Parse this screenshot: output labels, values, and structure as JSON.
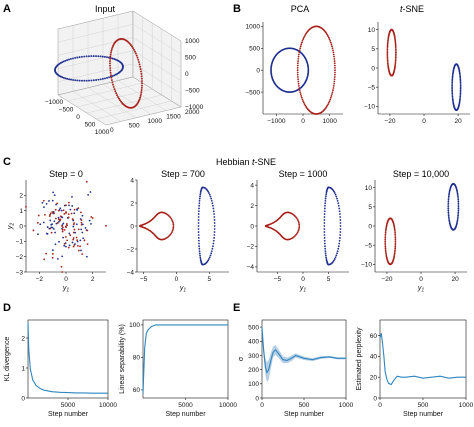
{
  "figure": {
    "panel_letters": [
      "A",
      "B",
      "C",
      "D",
      "E"
    ]
  },
  "colors": {
    "blue": "#1f2f8f",
    "red": "#a8201a",
    "line": "#2f86bf",
    "band": "#b7cfe6",
    "grid": "#cccccc"
  },
  "chart_data": [
    {
      "id": "A",
      "type": "scatter",
      "title": "Input",
      "z_ticks": [
        "1000",
        "500",
        "0",
        "−500",
        "−1000"
      ],
      "x_ticks": [
        "−1000",
        "−500",
        "0",
        "500",
        "1000"
      ],
      "y_ticks": [
        "0",
        "500",
        "1000",
        "1500",
        "2000"
      ],
      "series": [
        {
          "color": "blue",
          "shape": "circle",
          "radius": 1000,
          "center": [
            0,
            0,
            0
          ],
          "plane": "xy"
        },
        {
          "color": "red",
          "shape": "circle",
          "radius": 1000,
          "center": [
            1000,
            0,
            0
          ],
          "plane": "xz"
        }
      ]
    },
    {
      "id": "B1",
      "type": "scatter",
      "title": "PCA",
      "xlim": [
        -1500,
        1500
      ],
      "ylim": [
        -1000,
        1100
      ],
      "x_ticks": [
        -1000,
        0,
        1000
      ],
      "y_ticks": [
        -500,
        0,
        500,
        1000
      ],
      "x_tick_labels": [
        "−1000",
        "0",
        "1000"
      ],
      "y_tick_labels": [
        "−500",
        "0",
        "500",
        "1000"
      ],
      "series": [
        {
          "color": "blue",
          "center": [
            -500,
            0
          ],
          "radii": [
            700,
            500
          ]
        },
        {
          "color": "red",
          "center": [
            500,
            0
          ],
          "radii": [
            700,
            1000
          ]
        }
      ]
    },
    {
      "id": "B2",
      "type": "scatter",
      "title_prefix": "",
      "title_italic": "t",
      "title_suffix": "-SNE",
      "xlim": [
        -27,
        27
      ],
      "ylim": [
        -12,
        12
      ],
      "x_ticks": [
        -20,
        0,
        20
      ],
      "y_ticks": [
        -10,
        -5,
        0,
        5,
        10
      ],
      "x_tick_labels": [
        "−20",
        "0",
        "20"
      ],
      "y_tick_labels": [
        "−10",
        "−5",
        "0",
        "5",
        "10"
      ],
      "series": [
        {
          "color": "red",
          "center": [
            -19,
            4
          ],
          "radii": [
            2.5,
            6
          ]
        },
        {
          "color": "blue",
          "center": [
            19,
            -5
          ],
          "radii": [
            2.5,
            6
          ]
        }
      ]
    },
    {
      "id": "C",
      "group_title_prefix": "Hebbian ",
      "group_title_italic": "t",
      "group_title_suffix": "-SNE",
      "y_axis_label": "y",
      "y_axis_label_sub": "2",
      "x_axis_label": "y",
      "x_axis_label_sub": "1",
      "panels": [
        {
          "type": "scatter",
          "title": "Step = 0",
          "xlim": [
            -3,
            3
          ],
          "ylim": [
            -3,
            3
          ],
          "x_ticks": [
            -2,
            0,
            2
          ],
          "y_ticks": [
            -3,
            -2,
            -1,
            0,
            1,
            2
          ],
          "x_tick_labels": [
            "−2",
            "0",
            "2"
          ],
          "y_tick_labels": [
            "−3",
            "−2",
            "−1",
            "0",
            "1",
            "2"
          ],
          "series": [
            {
              "color": "blue",
              "distribution": "gaussian",
              "sd": 1
            },
            {
              "color": "red",
              "distribution": "gaussian",
              "sd": 1
            }
          ]
        },
        {
          "type": "scatter",
          "title": "Step = 700",
          "xlim": [
            -6,
            8
          ],
          "ylim": [
            -4,
            4
          ],
          "x_ticks": [
            -5,
            0,
            5
          ],
          "y_ticks": [
            -4,
            -2,
            0,
            2,
            4
          ],
          "x_tick_labels": [
            "−5",
            "0",
            "5"
          ],
          "y_tick_labels": [
            "−4",
            "−2",
            "0",
            "2",
            "4"
          ],
          "series": [
            {
              "color": "red",
              "shape": "curved-loop",
              "center": [
                -3,
                0
              ]
            },
            {
              "color": "blue",
              "shape": "arc",
              "center": [
                4,
                0
              ]
            }
          ]
        },
        {
          "type": "scatter",
          "title": "Step = 1000",
          "xlim": [
            -9,
            9
          ],
          "ylim": [
            -4.5,
            4.5
          ],
          "x_ticks": [
            -5,
            0,
            5
          ],
          "y_ticks": [
            -4,
            -2,
            0,
            2,
            4
          ],
          "x_tick_labels": [
            "−5",
            "0",
            "5"
          ],
          "y_tick_labels": [
            "−4",
            "−2",
            "0",
            "2",
            "4"
          ],
          "series": [
            {
              "color": "red",
              "shape": "curved-loop",
              "center": [
                -4,
                0
              ]
            },
            {
              "color": "blue",
              "shape": "arc",
              "center": [
                5,
                0
              ]
            }
          ]
        },
        {
          "type": "scatter",
          "title": "Step = 10,000",
          "xlim": [
            -27,
            27
          ],
          "ylim": [
            -12,
            12
          ],
          "x_ticks": [
            -20,
            0,
            20
          ],
          "y_ticks": [
            -10,
            -5,
            0,
            5,
            10
          ],
          "x_tick_labels": [
            "−20",
            "0",
            "20"
          ],
          "y_tick_labels": [
            "−10",
            "−5",
            "0",
            "5",
            "10"
          ],
          "series": [
            {
              "color": "red",
              "center": [
                -18,
                -4
              ],
              "radii": [
                3,
                6
              ]
            },
            {
              "color": "blue",
              "center": [
                19,
                5
              ],
              "radii": [
                3,
                6
              ]
            }
          ]
        }
      ]
    },
    {
      "id": "D1",
      "type": "line",
      "xlabel": "Step number",
      "ylabel": "KL divergence",
      "xlim": [
        0,
        10000
      ],
      "ylim": [
        0,
        2.6
      ],
      "x_ticks": [
        5000,
        10000
      ],
      "y_ticks": [
        0,
        1,
        2
      ],
      "x_tick_labels": [
        "5000",
        "10000"
      ],
      "y_tick_labels": [
        "0",
        "1",
        "2"
      ],
      "x": [
        0,
        100,
        300,
        600,
        1000,
        1500,
        2000,
        3000,
        4000,
        5000,
        6000,
        7000,
        8000,
        9000,
        10000
      ],
      "values": [
        2.5,
        1.6,
        0.95,
        0.6,
        0.42,
        0.32,
        0.26,
        0.21,
        0.19,
        0.18,
        0.17,
        0.17,
        0.16,
        0.16,
        0.16
      ]
    },
    {
      "id": "D2",
      "type": "line",
      "xlabel": "Step number",
      "ylabel": "Linear separability (%)",
      "xlim": [
        0,
        10000
      ],
      "ylim": [
        55,
        103
      ],
      "x_ticks": [
        5000,
        10000
      ],
      "y_ticks": [
        60,
        80,
        100
      ],
      "x_tick_labels": [
        "5000",
        "10000"
      ],
      "y_tick_labels": [
        "60",
        "80",
        "100"
      ],
      "x": [
        0,
        200,
        400,
        600,
        800,
        1000,
        1500,
        2000,
        5000,
        10000
      ],
      "values": [
        58,
        86,
        95,
        97,
        98,
        99,
        100,
        100,
        100,
        100
      ]
    },
    {
      "id": "E1",
      "type": "line",
      "xlabel": "Step number",
      "ylabel": "σ",
      "xlim": [
        0,
        1000
      ],
      "ylim": [
        0,
        550
      ],
      "x_ticks": [
        0,
        500,
        1000
      ],
      "y_ticks": [
        0,
        100,
        200,
        300,
        400,
        500
      ],
      "x_tick_labels": [
        "0",
        "500",
        "1000"
      ],
      "y_tick_labels": [
        "0",
        "100",
        "200",
        "300",
        "400",
        "500"
      ],
      "x": [
        0,
        20,
        40,
        60,
        80,
        100,
        130,
        160,
        200,
        250,
        300,
        350,
        400,
        500,
        600,
        700,
        800,
        900,
        1000
      ],
      "values": [
        500,
        330,
        220,
        180,
        200,
        250,
        320,
        340,
        310,
        270,
        265,
        280,
        300,
        280,
        270,
        285,
        290,
        280,
        280
      ],
      "band_width": [
        0,
        40,
        60,
        70,
        70,
        60,
        40,
        35,
        30,
        25,
        20,
        20,
        15,
        12,
        10,
        10,
        8,
        8,
        8
      ]
    },
    {
      "id": "E2",
      "type": "line",
      "xlabel": "Step number",
      "ylabel": "Estimated perplexity",
      "xlim": [
        0,
        1000
      ],
      "ylim": [
        0,
        75
      ],
      "x_ticks": [
        0,
        500,
        1000
      ],
      "y_ticks": [
        0,
        20,
        40,
        60
      ],
      "x_tick_labels": [
        "0",
        "500",
        "1000"
      ],
      "y_tick_labels": [
        "0",
        "20",
        "40",
        "60"
      ],
      "x": [
        0,
        15,
        30,
        45,
        60,
        80,
        100,
        130,
        160,
        200,
        250,
        300,
        400,
        500,
        600,
        700,
        800,
        900,
        1000
      ],
      "values": [
        58,
        62,
        52,
        40,
        25,
        18,
        14,
        13,
        17,
        21,
        20,
        20,
        21,
        19,
        20,
        21,
        19,
        20,
        20
      ]
    }
  ]
}
